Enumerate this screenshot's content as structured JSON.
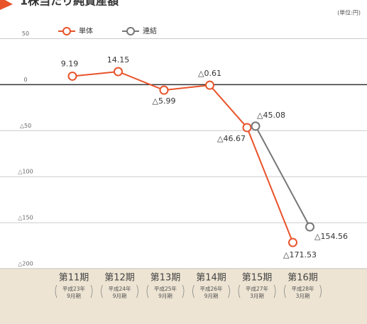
{
  "chart_data": {
    "type": "line",
    "title": "1株当たり純資産額",
    "unit": "(単位:円)",
    "categories": [
      "第11期",
      "第12期",
      "第13期",
      "第14期",
      "第15期",
      "第16期"
    ],
    "category_notes": [
      [
        "平成23年",
        "9月期"
      ],
      [
        "平成24年",
        "9月期"
      ],
      [
        "平成25年",
        "9月期"
      ],
      [
        "平成26年",
        "9月期"
      ],
      [
        "平成27年",
        "3月期"
      ],
      [
        "平成28年",
        "3月期"
      ]
    ],
    "series": [
      {
        "name": "単体",
        "color": "#e8532a",
        "values": [
          9.19,
          14.15,
          -5.99,
          -0.61,
          -46.67,
          -171.53
        ],
        "value_labels": [
          "9.19",
          "14.15",
          "△5.99",
          "△0.61",
          "△46.67",
          "△171.53"
        ]
      },
      {
        "name": "連結",
        "color": "#777777",
        "values": [
          null,
          null,
          null,
          null,
          -45.08,
          -154.56
        ],
        "value_labels": [
          null,
          null,
          null,
          null,
          "△45.08",
          "△154.56"
        ]
      }
    ],
    "ylim": [
      -200,
      65
    ],
    "yticks": [
      50,
      0,
      {
        "value": -50,
        "label": "△50"
      },
      {
        "value": -100,
        "label": "△100"
      },
      {
        "value": -150,
        "label": "△150"
      },
      {
        "value": -200,
        "label": "△200"
      }
    ],
    "grid": true
  }
}
